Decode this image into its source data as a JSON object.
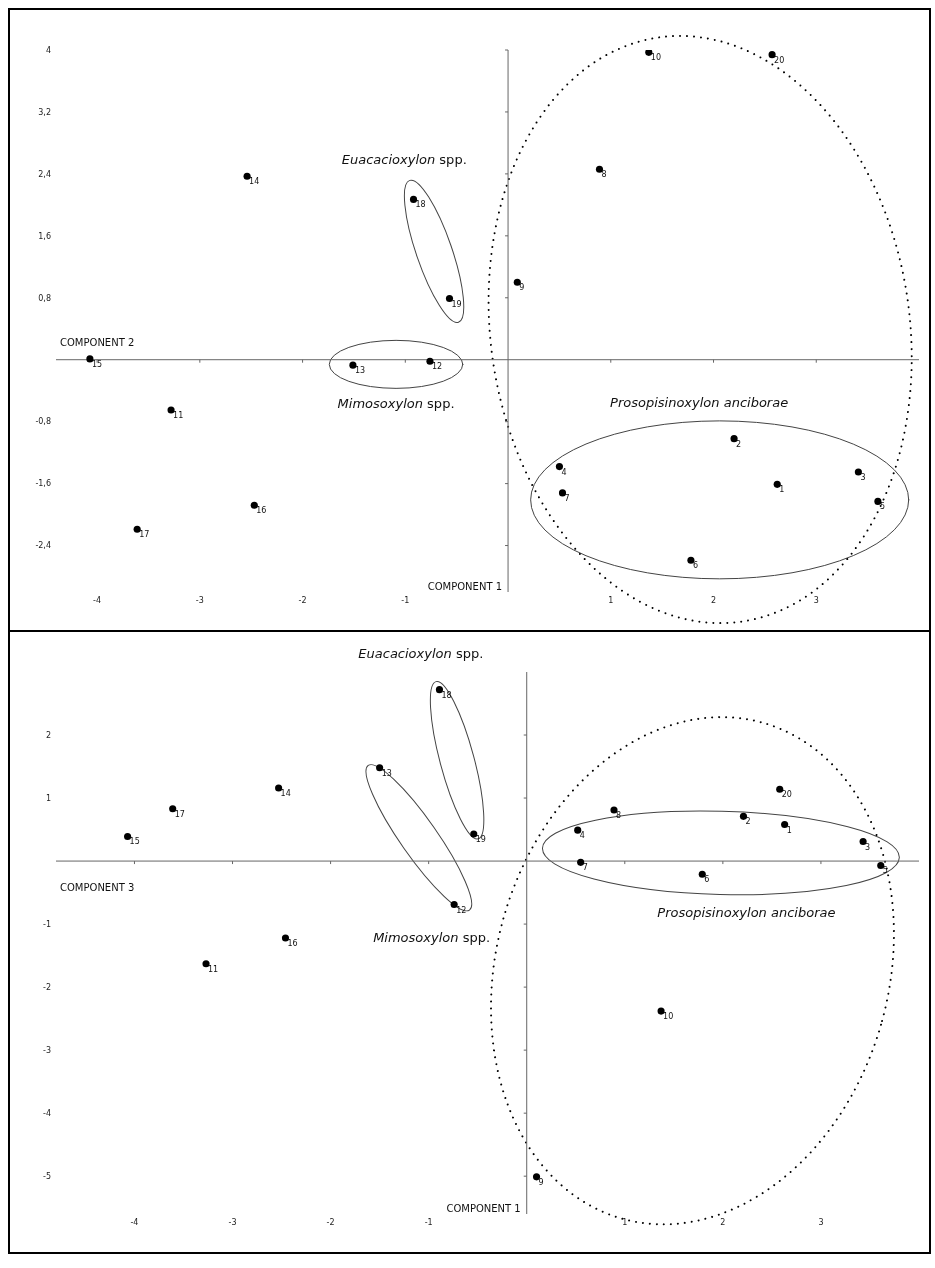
{
  "chart_data": [
    {
      "type": "scatter",
      "xlabel": "COMPONENT 2",
      "ylabel": "COMPONENT 1",
      "xlim": [
        -4.4,
        4
      ],
      "ylim": [
        -3,
        4
      ],
      "xticks": [
        -4,
        -3,
        -2,
        -1,
        1,
        2,
        3
      ],
      "yticks": [
        {
          "value": -2.4,
          "label": "-2,4"
        },
        {
          "value": -1.6,
          "label": "-1,6"
        },
        {
          "value": -0.8,
          "label": "-0,8"
        },
        {
          "value": 0.8,
          "label": "0,8"
        },
        {
          "value": 1.6,
          "label": "1,6"
        },
        {
          "value": 2.4,
          "label": "2,4"
        },
        {
          "value": 3.2,
          "label": "3,2"
        },
        4
      ],
      "grid": false,
      "marker": "circle",
      "series": [
        {
          "color": "#000000",
          "x": [
            2.62,
            2.2,
            3.41,
            0.5,
            3.6,
            1.78,
            0.53,
            0.89,
            0.09,
            1.37,
            -3.28,
            -0.76,
            -1.51,
            -2.54,
            -4.07,
            -2.47,
            -3.61,
            -0.92,
            -0.57,
            2.57
          ],
          "values": [
            -1.61,
            -1.02,
            -1.45,
            -1.38,
            -1.83,
            -2.59,
            -1.72,
            2.46,
            1.0,
            3.97,
            -0.65,
            -0.02,
            -0.07,
            2.37,
            0.01,
            -1.88,
            -2.19,
            2.07,
            0.79,
            3.94
          ]
        }
      ],
      "annotations": [
        "Euacacioxylon spp.",
        "Mimosoxylon spp.",
        "Prosopisinoxylon anciborae",
        {
          "text": "1",
          "x": 2.62,
          "y": -1.61
        },
        {
          "text": "2",
          "x": 2.2,
          "y": -1.02
        },
        {
          "text": "3",
          "x": 3.41,
          "y": -1.45
        },
        {
          "text": "4",
          "x": 0.5,
          "y": -1.38
        },
        {
          "text": "5",
          "x": 3.6,
          "y": -1.83
        },
        {
          "text": "6",
          "x": 1.78,
          "y": -2.59
        },
        {
          "text": "7",
          "x": 0.53,
          "y": -1.72
        },
        {
          "text": "8",
          "x": 0.89,
          "y": 2.46
        },
        {
          "text": "9",
          "x": 0.09,
          "y": 1.0
        },
        {
          "text": "10",
          "x": 1.37,
          "y": 3.97
        },
        {
          "text": "11",
          "x": -3.28,
          "y": -0.65
        },
        {
          "text": "12",
          "x": -0.76,
          "y": -0.02
        },
        {
          "text": "13",
          "x": -1.51,
          "y": -0.07
        },
        {
          "text": "14",
          "x": -2.54,
          "y": 2.37
        },
        {
          "text": "15",
          "x": -4.07,
          "y": 0.01
        },
        {
          "text": "16",
          "x": -2.47,
          "y": -1.88
        },
        {
          "text": "17",
          "x": -3.61,
          "y": -2.19
        },
        {
          "text": "18",
          "x": -0.92,
          "y": 2.07
        },
        {
          "text": "19",
          "x": -0.57,
          "y": 0.79
        },
        {
          "text": "20",
          "x": 2.57,
          "y": 3.94
        }
      ]
    },
    {
      "type": "scatter",
      "xlabel": "COMPONENT 3",
      "ylabel": "COMPONENT 1",
      "xlim": [
        -4.8,
        4
      ],
      "ylim": [
        -5.6,
        3
      ],
      "xticks": [
        -4,
        -3,
        -2,
        -1,
        1,
        2,
        3
      ],
      "yticks": [
        -5,
        -4,
        -3,
        -2,
        -1,
        1,
        2
      ],
      "grid": false,
      "marker": "circle",
      "series": [
        {
          "color": "#000000",
          "x": [
            2.63,
            2.21,
            3.43,
            0.52,
            3.61,
            1.79,
            0.55,
            0.89,
            0.1,
            1.37,
            -3.27,
            -0.74,
            -1.5,
            -2.53,
            -4.07,
            -2.46,
            -3.61,
            -0.89,
            -0.54,
            2.58
          ],
          "values": [
            0.58,
            0.71,
            0.31,
            0.49,
            -0.07,
            -0.21,
            -0.02,
            0.81,
            -5.01,
            -2.38,
            -1.63,
            -0.69,
            1.48,
            1.16,
            0.39,
            -1.22,
            0.83,
            2.72,
            0.43,
            1.14
          ]
        }
      ],
      "annotations": [
        "Euacacioxylon spp.",
        "Mimosoxylon spp.",
        "Prosopisinoxylon anciborae",
        {
          "text": "1",
          "x": 2.63,
          "y": 0.58
        },
        {
          "text": "2",
          "x": 2.21,
          "y": 0.71
        },
        {
          "text": "3",
          "x": 3.43,
          "y": 0.31
        },
        {
          "text": "4",
          "x": 0.52,
          "y": 0.49
        },
        {
          "text": "5",
          "x": 3.61,
          "y": -0.07
        },
        {
          "text": "6",
          "x": 1.79,
          "y": -0.21
        },
        {
          "text": "7",
          "x": 0.55,
          "y": -0.02
        },
        {
          "text": "8",
          "x": 0.89,
          "y": 0.81
        },
        {
          "text": "9",
          "x": 0.1,
          "y": -5.01
        },
        {
          "text": "10",
          "x": 1.37,
          "y": -2.38
        },
        {
          "text": "11",
          "x": -3.27,
          "y": -1.63
        },
        {
          "text": "12",
          "x": -0.74,
          "y": -0.69
        },
        {
          "text": "13",
          "x": -1.5,
          "y": 1.48
        },
        {
          "text": "14",
          "x": -2.53,
          "y": 1.16
        },
        {
          "text": "15",
          "x": -4.07,
          "y": 0.39
        },
        {
          "text": "16",
          "x": -2.46,
          "y": -1.22
        },
        {
          "text": "17",
          "x": -3.61,
          "y": 0.83
        },
        {
          "text": "18",
          "x": -0.89,
          "y": 2.72
        },
        {
          "text": "19",
          "x": -0.54,
          "y": 0.43
        },
        {
          "text": "20",
          "x": 2.58,
          "y": 1.14
        }
      ]
    }
  ]
}
